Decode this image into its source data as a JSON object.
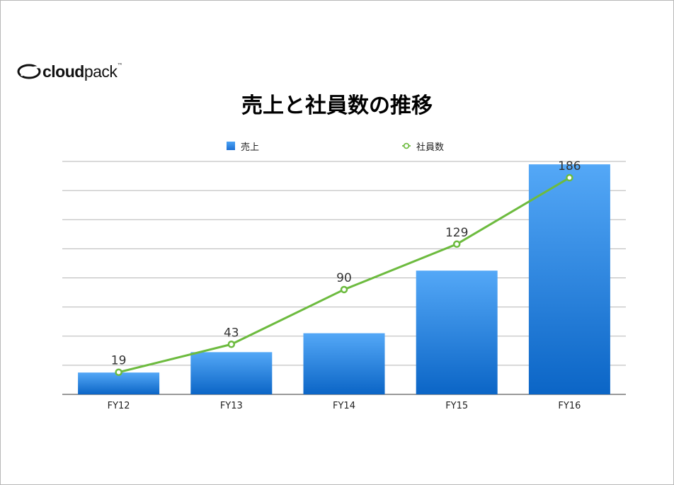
{
  "logo": {
    "text_bold": "cloud",
    "text_light": "pack",
    "tm": "™"
  },
  "colors": {
    "bar_top": "#54a8f7",
    "bar_bottom": "#0b65c6",
    "line": "#6dbb3f",
    "grid": "#b5b5b5",
    "axis": "#333333"
  },
  "chart_data": {
    "type": "bar",
    "title": "売上と社員数の推移",
    "categories": [
      "FY12",
      "FY13",
      "FY14",
      "FY15",
      "FY16"
    ],
    "series": [
      {
        "name": "売上",
        "type": "bar",
        "values": [
          7.5,
          14.5,
          21,
          42.5,
          79
        ]
      },
      {
        "name": "社員数",
        "type": "line",
        "values": [
          19,
          43,
          90,
          129,
          186
        ],
        "data_labels": [
          "19",
          "43",
          "90",
          "129",
          "186"
        ]
      }
    ],
    "ylim": [
      0,
      80
    ],
    "y2lim": [
      0,
      200
    ],
    "grid": true,
    "legend_position": "top"
  }
}
